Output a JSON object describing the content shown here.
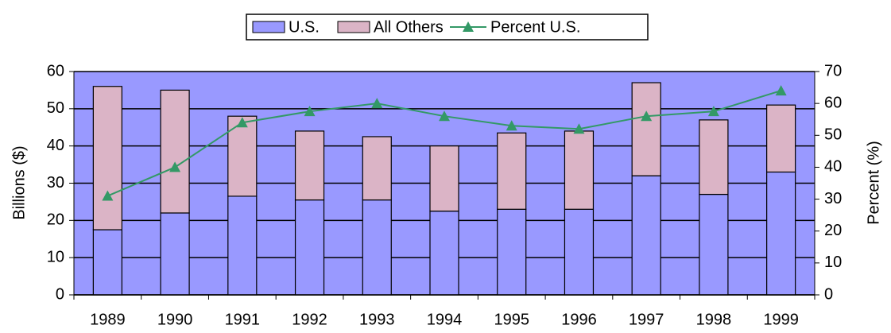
{
  "chart_data": {
    "type": "bar",
    "stacked": true,
    "categories": [
      "1989",
      "1990",
      "1991",
      "1992",
      "1993",
      "1994",
      "1995",
      "1996",
      "1997",
      "1998",
      "1999"
    ],
    "series": [
      {
        "name": "U.S.",
        "color": "#9999ff",
        "values": [
          17.5,
          22,
          26.5,
          25.5,
          25.5,
          22.5,
          23,
          23,
          32,
          27,
          33
        ]
      },
      {
        "name": "All Others",
        "color": "#dbb4c6",
        "values": [
          38.5,
          33,
          21.5,
          18.5,
          17,
          17.5,
          20.5,
          21,
          25,
          20,
          18
        ]
      },
      {
        "name": "Percent U.S.",
        "color": "#339966",
        "type": "line",
        "axis": "y2",
        "values": [
          31,
          40,
          54,
          57.5,
          60,
          56,
          53,
          52,
          56,
          57.5,
          64
        ]
      }
    ],
    "ylabel": "Billions ($)",
    "y2label": "Percent (%)",
    "ylim": [
      0,
      60
    ],
    "yticks": [
      0,
      10,
      20,
      30,
      40,
      50,
      60
    ],
    "y2lim": [
      0,
      70
    ],
    "y2ticks": [
      0,
      10,
      20,
      30,
      40,
      50,
      60,
      70
    ],
    "grid": true,
    "background": "#9999ff",
    "legend": "top"
  }
}
